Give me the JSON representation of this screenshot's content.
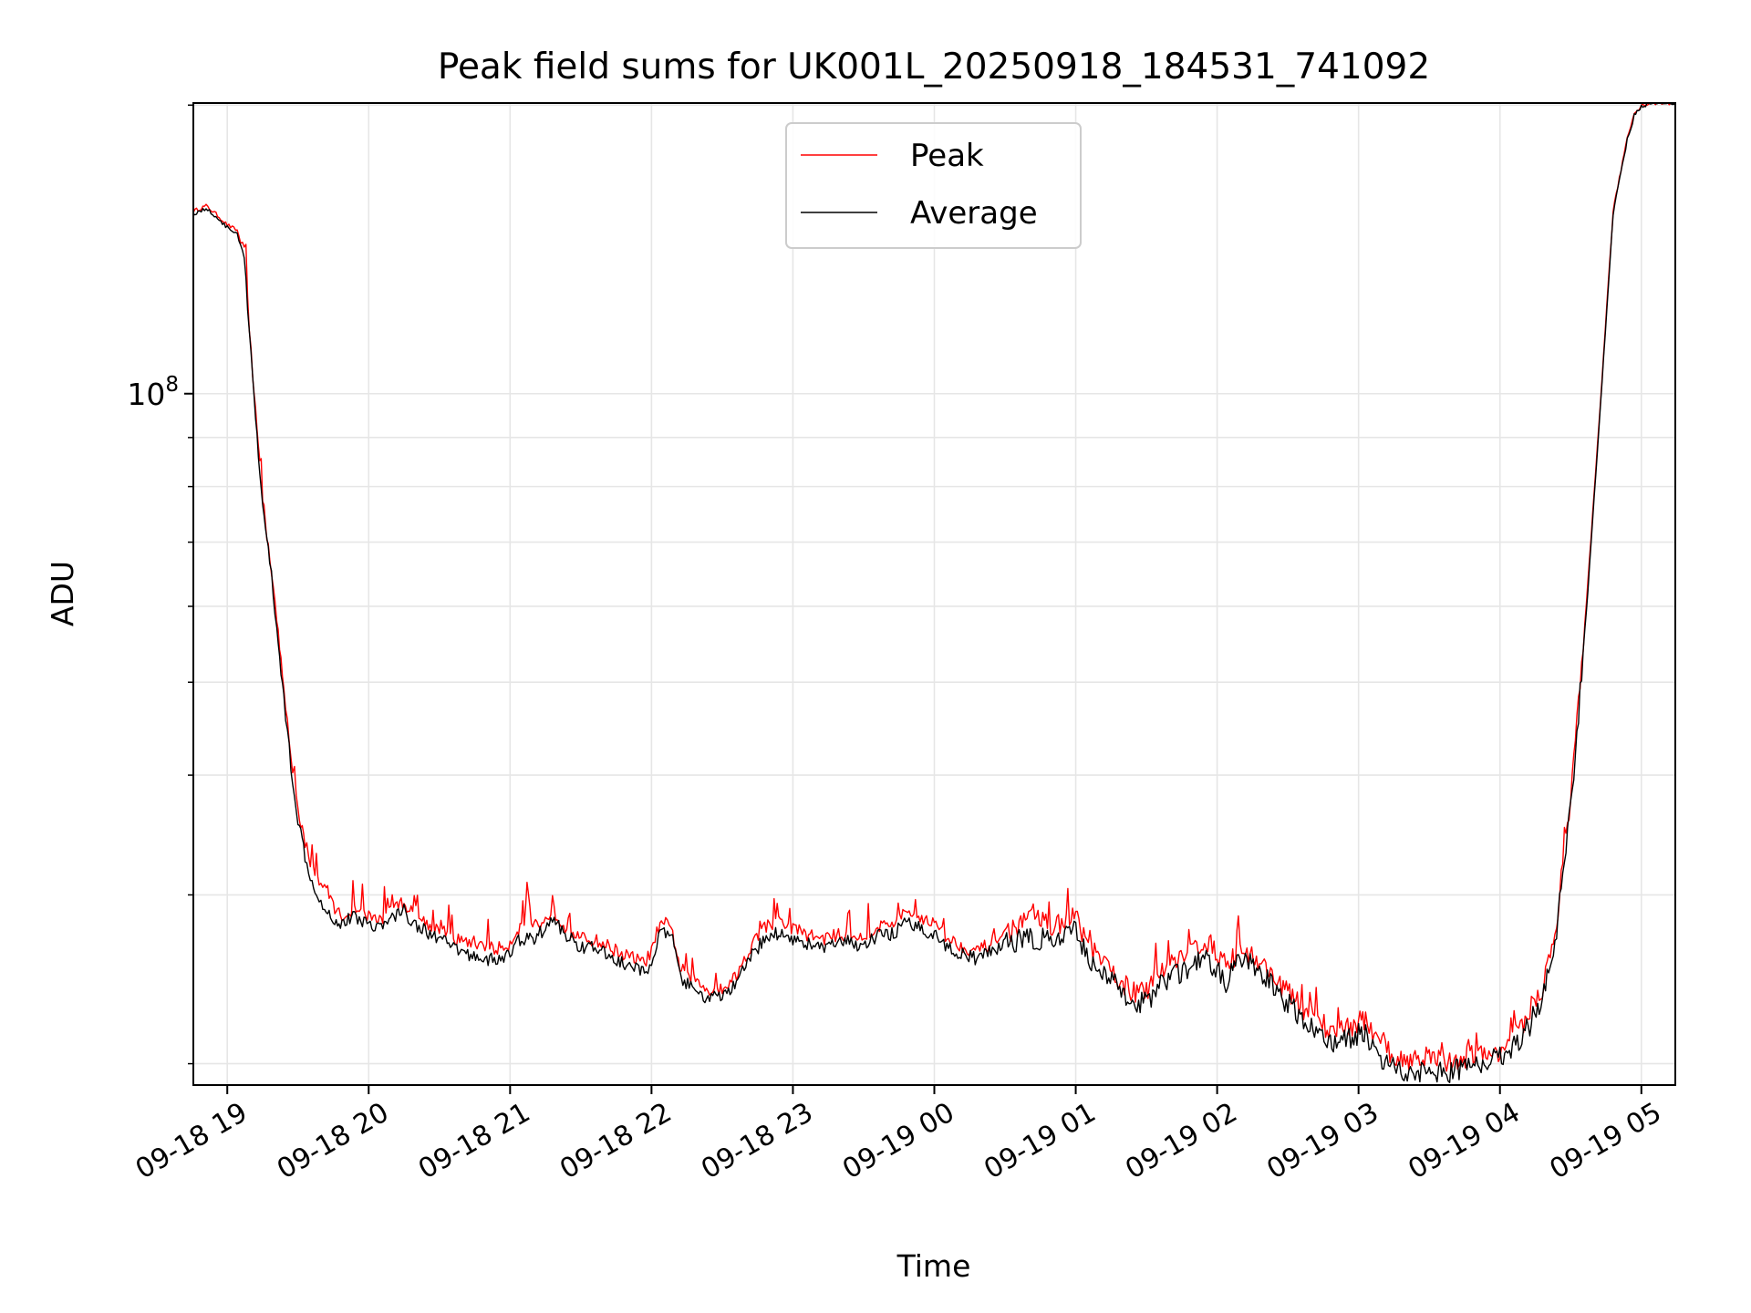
{
  "chart_data": {
    "type": "line",
    "title": "Peak field sums for UK001L_20250918_184531_741092",
    "xlabel": "Time",
    "ylabel": "ADU",
    "yscale": "log",
    "ylim": [
      19000000,
      201000000
    ],
    "xlim_hours": [
      -0.24,
      10.24
    ],
    "grid": true,
    "grid_color": "#e6e6e6",
    "legend_position": "upper center",
    "x_ticks": [
      {
        "h": 0,
        "label": "09-18 19"
      },
      {
        "h": 1,
        "label": "09-18 20"
      },
      {
        "h": 2,
        "label": "09-18 21"
      },
      {
        "h": 3,
        "label": "09-18 22"
      },
      {
        "h": 4,
        "label": "09-18 23"
      },
      {
        "h": 5,
        "label": "09-19 00"
      },
      {
        "h": 6,
        "label": "09-19 01"
      },
      {
        "h": 7,
        "label": "09-19 02"
      },
      {
        "h": 8,
        "label": "09-19 03"
      },
      {
        "h": 9,
        "label": "09-19 04"
      },
      {
        "h": 10,
        "label": "09-19 05"
      }
    ],
    "y_major_ticks": [
      {
        "value": 100000000,
        "base": "10",
        "exp": "8"
      }
    ],
    "y_minor_ticks": [
      20000000,
      30000000,
      40000000,
      50000000,
      60000000,
      70000000,
      80000000,
      90000000,
      200000000
    ],
    "series": [
      {
        "name": "Peak",
        "color": "#ff0000",
        "x_hours": [
          -0.24,
          -0.15,
          -0.08,
          0.0,
          0.07,
          0.12,
          0.18,
          0.22,
          0.25,
          0.27,
          0.3,
          0.35,
          0.4,
          0.45,
          0.5,
          0.55,
          0.6,
          0.65,
          0.7,
          0.75,
          0.8,
          0.9,
          1.0,
          1.1,
          1.2,
          1.25,
          1.3,
          1.4,
          1.5,
          1.6,
          1.7,
          1.8,
          1.9,
          2.0,
          2.05,
          2.1,
          2.12,
          2.15,
          2.2,
          2.25,
          2.3,
          2.4,
          2.5,
          2.6,
          2.7,
          2.8,
          2.9,
          2.95,
          3.0,
          3.05,
          3.1,
          3.15,
          3.2,
          3.3,
          3.4,
          3.5,
          3.6,
          3.7,
          3.8,
          3.9,
          4.0,
          4.1,
          4.2,
          4.3,
          4.4,
          4.5,
          4.6,
          4.7,
          4.8,
          4.9,
          5.0,
          5.1,
          5.2,
          5.3,
          5.4,
          5.5,
          5.6,
          5.7,
          5.8,
          5.9,
          6.0,
          6.1,
          6.2,
          6.3,
          6.4,
          6.5,
          6.6,
          6.7,
          6.8,
          6.9,
          7.0,
          7.05,
          7.1,
          7.15,
          7.2,
          7.3,
          7.4,
          7.5,
          7.6,
          7.7,
          7.8,
          7.9,
          8.0,
          8.05,
          8.1,
          8.2,
          8.3,
          8.4,
          8.5,
          8.6,
          8.7,
          8.8,
          8.9,
          9.0,
          9.1,
          9.2,
          9.3,
          9.4,
          9.5,
          9.6,
          9.7,
          9.8,
          9.9,
          9.95,
          10.0,
          10.05,
          10.1,
          10.24
        ],
        "y": [
          155000000,
          157000000,
          154000000,
          150000000,
          148000000,
          140000000,
          105000000,
          88000000,
          78000000,
          73000000,
          68000000,
          58000000,
          49000000,
          42000000,
          37000000,
          34000000,
          32000000,
          31000000,
          30500000,
          29300000,
          28500000,
          28900000,
          28500000,
          28300000,
          29300000,
          29500000,
          28800000,
          28100000,
          27600000,
          27000000,
          26800000,
          26700000,
          26300000,
          26700000,
          27600000,
          28000000,
          31000000,
          28000000,
          28000000,
          28200000,
          28900000,
          27700000,
          27000000,
          26900000,
          26500000,
          26000000,
          25700000,
          25400000,
          26300000,
          27700000,
          28000000,
          27400000,
          25200000,
          24400000,
          23900000,
          24000000,
          24700000,
          26500000,
          27800000,
          28100000,
          27700000,
          27300000,
          27000000,
          27200000,
          27300000,
          27000000,
          27800000,
          28000000,
          28700000,
          28500000,
          28000000,
          27000000,
          26500000,
          26200000,
          26700000,
          27400000,
          27800000,
          28400000,
          28100000,
          27800000,
          28600000,
          26300000,
          25400000,
          24500000,
          23800000,
          23700000,
          25100000,
          25800000,
          26100000,
          26900000,
          26200000,
          25000000,
          25500000,
          26400000,
          26200000,
          25500000,
          24700000,
          23700000,
          22900000,
          22300000,
          21700000,
          21800000,
          22100000,
          22300000,
          21300000,
          20600000,
          20100000,
          20400000,
          20300000,
          20100000,
          20100000,
          20500000,
          20300000,
          20700000,
          21300000,
          22200000,
          24000000,
          28000000,
          38000000,
          57000000,
          93000000,
          155000000,
          185000000,
          196000000,
          200000000,
          200500000,
          201000000,
          201000000
        ]
      },
      {
        "name": "Average",
        "color": "#000000",
        "x_hours": [
          -0.24,
          -0.15,
          -0.08,
          0.0,
          0.07,
          0.12,
          0.18,
          0.22,
          0.25,
          0.27,
          0.3,
          0.35,
          0.4,
          0.45,
          0.5,
          0.55,
          0.6,
          0.65,
          0.7,
          0.75,
          0.8,
          0.9,
          1.0,
          1.1,
          1.2,
          1.25,
          1.3,
          1.4,
          1.5,
          1.6,
          1.7,
          1.8,
          1.9,
          2.0,
          2.05,
          2.1,
          2.12,
          2.15,
          2.2,
          2.25,
          2.3,
          2.4,
          2.5,
          2.6,
          2.7,
          2.8,
          2.9,
          2.95,
          3.0,
          3.05,
          3.1,
          3.15,
          3.2,
          3.3,
          3.4,
          3.5,
          3.6,
          3.7,
          3.8,
          3.9,
          4.0,
          4.1,
          4.2,
          4.3,
          4.4,
          4.5,
          4.6,
          4.7,
          4.8,
          4.9,
          5.0,
          5.1,
          5.2,
          5.3,
          5.4,
          5.5,
          5.6,
          5.7,
          5.8,
          5.9,
          6.0,
          6.1,
          6.2,
          6.3,
          6.4,
          6.5,
          6.6,
          6.7,
          6.8,
          6.9,
          7.0,
          7.05,
          7.1,
          7.15,
          7.2,
          7.3,
          7.4,
          7.5,
          7.6,
          7.7,
          7.8,
          7.9,
          8.0,
          8.05,
          8.1,
          8.2,
          8.3,
          8.4,
          8.5,
          8.6,
          8.7,
          8.8,
          8.9,
          9.0,
          9.1,
          9.2,
          9.3,
          9.4,
          9.5,
          9.6,
          9.7,
          9.8,
          9.9,
          9.95,
          10.0,
          10.05,
          10.1,
          10.24
        ],
        "y": [
          154000000,
          156000000,
          153000000,
          149000000,
          147000000,
          138000000,
          103000000,
          86000000,
          77000000,
          72000000,
          67000000,
          57000000,
          48000000,
          41000000,
          36000000,
          33000000,
          31000000,
          29800000,
          29000000,
          28300000,
          28000000,
          28500000,
          28000000,
          27800000,
          28700000,
          28900000,
          28200000,
          27500000,
          27000000,
          26400000,
          26000000,
          25800000,
          25600000,
          26000000,
          26800000,
          27000000,
          27300000,
          26800000,
          27300000,
          27700000,
          28300000,
          27200000,
          26500000,
          26400000,
          25900000,
          25400000,
          25100000,
          24800000,
          25700000,
          27100000,
          27400000,
          26900000,
          24700000,
          23800000,
          23400000,
          23500000,
          24200000,
          25800000,
          27000000,
          27400000,
          27000000,
          26700000,
          26400000,
          26600000,
          26800000,
          26500000,
          27200000,
          27300000,
          28000000,
          27700000,
          27300000,
          26400000,
          26000000,
          25700000,
          26200000,
          26700000,
          26900000,
          27000000,
          26900000,
          26900000,
          27500000,
          25700000,
          24800000,
          24000000,
          23300000,
          23100000,
          24400000,
          24700000,
          25100000,
          25700000,
          25200000,
          24100000,
          24900000,
          25600000,
          25600000,
          24900000,
          24000000,
          23100000,
          22300000,
          21600000,
          21100000,
          21100000,
          21500000,
          21700000,
          20700000,
          20100000,
          19600000,
          19700000,
          19600000,
          19600000,
          19700000,
          19900000,
          20100000,
          20400000,
          20900000,
          21800000,
          23500000,
          27500000,
          37000000,
          56000000,
          92000000,
          154000000,
          184000000,
          195000000,
          199500000,
          200500000,
          201000000,
          201000000
        ]
      }
    ]
  }
}
